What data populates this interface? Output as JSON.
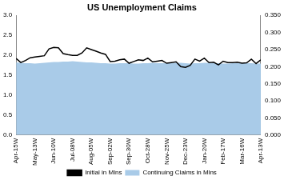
{
  "chart_data": {
    "type": "line",
    "title": "US Unemployment Claims",
    "categories": [
      "Apr-15W",
      null,
      null,
      null,
      "May-13W",
      null,
      null,
      null,
      "Jun-10W",
      null,
      null,
      null,
      "Jul-08W",
      null,
      null,
      null,
      "Aug-05W",
      null,
      null,
      null,
      "Sep-02W",
      null,
      null,
      null,
      "Sep-30W",
      null,
      null,
      null,
      "Oct-28W",
      null,
      null,
      null,
      "Nov-25W",
      null,
      null,
      null,
      "Dec-23W",
      null,
      null,
      null,
      "Jan-20W",
      null,
      null,
      null,
      "Feb-17W",
      null,
      null,
      null,
      "Mar-16W",
      null,
      null,
      null,
      "Apr-13W"
    ],
    "series": [
      {
        "name": "Continuing Claims in Mlns",
        "type": "area",
        "color": "#a9cbe8",
        "values": [
          1.82,
          1.81,
          1.8,
          1.8,
          1.79,
          1.8,
          1.81,
          1.82,
          1.83,
          1.83,
          1.84,
          1.84,
          1.85,
          1.84,
          1.83,
          1.82,
          1.82,
          1.81,
          1.8,
          1.8,
          1.79,
          1.79,
          1.8,
          1.8,
          1.8,
          1.79,
          1.79,
          1.8,
          1.8,
          1.81,
          1.8,
          1.8,
          1.8,
          1.8,
          1.81,
          1.81,
          1.8,
          1.79,
          1.8,
          1.8,
          1.81,
          1.81,
          1.8,
          1.8,
          1.79,
          1.79,
          1.8,
          1.8,
          1.8,
          1.8,
          1.8,
          1.79,
          1.79
        ]
      },
      {
        "name": "Initial in Mlns",
        "type": "line",
        "color": "#000000",
        "axis": "y2",
        "values": [
          0.224,
          0.212,
          0.218,
          0.226,
          0.228,
          0.23,
          0.232,
          0.252,
          0.256,
          0.255,
          0.238,
          0.235,
          0.233,
          0.233,
          0.24,
          0.255,
          0.25,
          0.245,
          0.24,
          0.236,
          0.215,
          0.216,
          0.22,
          0.222,
          0.21,
          0.215,
          0.22,
          0.218,
          0.225,
          0.214,
          0.216,
          0.218,
          0.21,
          0.212,
          0.214,
          0.2,
          0.198,
          0.204,
          0.222,
          0.216,
          0.225,
          0.212,
          0.213,
          0.205,
          0.216,
          0.212,
          0.212,
          0.213,
          0.21,
          0.211,
          0.222,
          0.209,
          0.22
        ]
      }
    ],
    "ylim": [
      0,
      3
    ],
    "yticks": [
      {
        "value": 0,
        "label": "0.0"
      },
      {
        "value": 0.5,
        "label": "0.5"
      },
      {
        "value": 1,
        "label": "1.0"
      },
      {
        "value": 1.5,
        "label": "1.5"
      },
      {
        "value": 2,
        "label": "2.0"
      },
      {
        "value": 2.5,
        "label": "2.5"
      },
      {
        "value": 3,
        "label": "3.0"
      }
    ],
    "y2lim": [
      0,
      0.35
    ],
    "y2ticks": [
      {
        "value": 0,
        "label": "0.000"
      },
      {
        "value": 0.05,
        "label": "0.050"
      },
      {
        "value": 0.1,
        "label": "0.100"
      },
      {
        "value": 0.15,
        "label": "0.150"
      },
      {
        "value": 0.2,
        "label": "0.200"
      },
      {
        "value": 0.25,
        "label": "0.250"
      },
      {
        "value": 0.3,
        "label": "0.300"
      },
      {
        "value": 0.35,
        "label": "0.350"
      }
    ],
    "grid": false,
    "legend": "bottom"
  }
}
